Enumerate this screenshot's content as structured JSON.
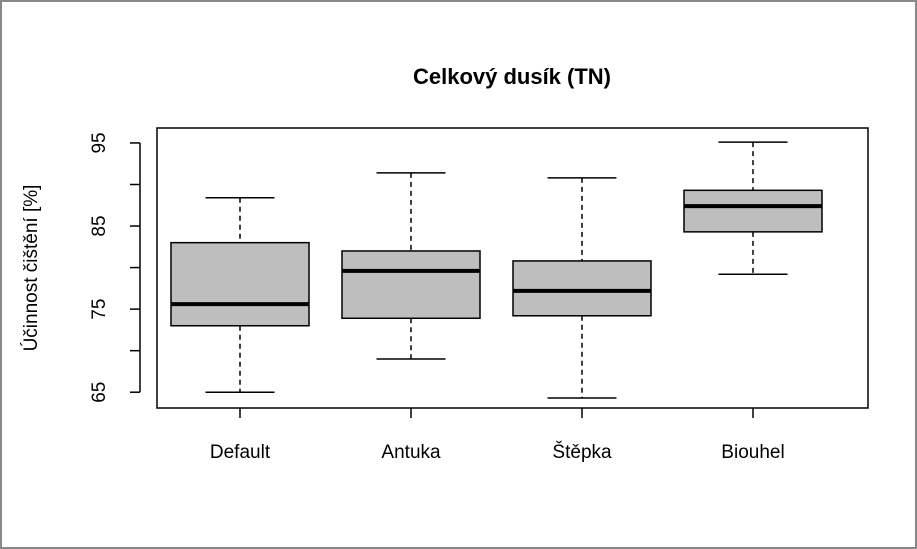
{
  "chart_data": {
    "type": "box",
    "title": "Celkový dusík (TN)",
    "ylabel": "Účinnost čištění [%]",
    "categories": [
      "Default",
      "Antuka",
      "Štěpka",
      "Biouhel"
    ],
    "max": [
      88.4,
      91.4,
      90.8,
      95.1
    ],
    "q3": [
      83.0,
      82.0,
      80.8,
      89.3
    ],
    "median": [
      75.6,
      79.6,
      77.2,
      87.4
    ],
    "q1": [
      73.0,
      73.9,
      74.2,
      84.3
    ],
    "min": [
      65.0,
      69.0,
      64.3,
      79.2
    ],
    "color": "#bebebe",
    "ylim": [
      63.1,
      96.8
    ],
    "yticks": [
      65,
      75,
      85,
      95
    ],
    "yminor_ticks": [
      70,
      80,
      90
    ]
  }
}
